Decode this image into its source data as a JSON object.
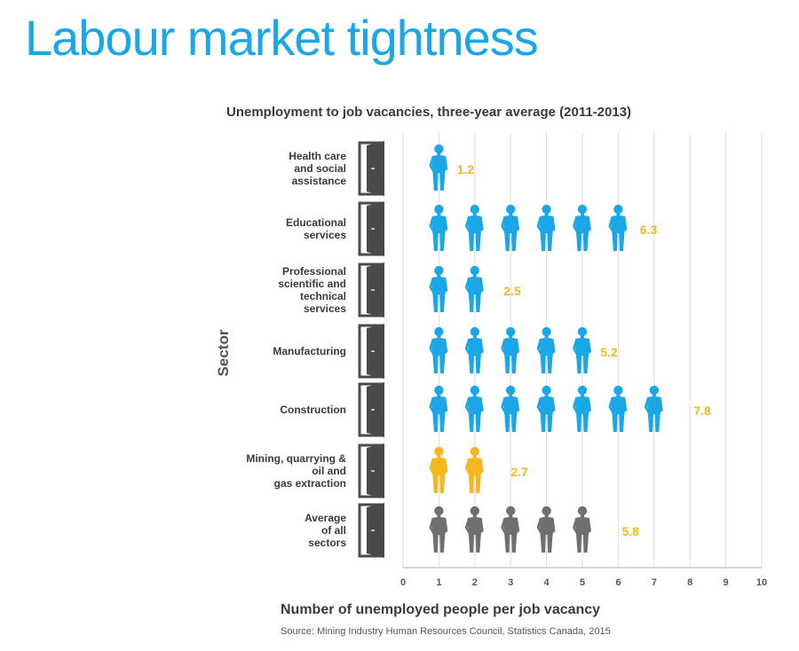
{
  "slide_title": "Labour market tightness",
  "source": "Source: Mining Industry Human Resources Council, Statistics Canada, 2015",
  "colors": {
    "blue": "#1aa7e8",
    "gold": "#f2b81d",
    "gray": "#6f6f6f",
    "door": "#4a4a4a",
    "grid": "#dcdcdc",
    "title": "#1aa7e8"
  },
  "chart_data": {
    "type": "bar",
    "title": "Unemployment to job vacancies, three-year average (2011-2013)",
    "xlabel": "Number of unemployed people per job vacancy",
    "ylabel": "Sector",
    "xlim": [
      0,
      10
    ],
    "xticks": [
      "0",
      "1",
      "2",
      "3",
      "4",
      "5",
      "6",
      "7",
      "8",
      "9",
      "10"
    ],
    "grid": "vertical",
    "legend": "none",
    "categories": [
      {
        "label": [
          "Health care",
          "and social",
          "assistance"
        ],
        "value": 1.2,
        "value_label": "1.2",
        "color": "blue"
      },
      {
        "label": [
          "Educational",
          "services"
        ],
        "value": 6.3,
        "value_label": "6.3",
        "color": "blue"
      },
      {
        "label": [
          "Professional",
          "scientific and",
          "technical",
          "services"
        ],
        "value": 2.5,
        "value_label": "2.5",
        "color": "blue"
      },
      {
        "label": [
          "Manufacturing"
        ],
        "value": 5.2,
        "value_label": "5.2",
        "color": "blue"
      },
      {
        "label": [
          "Construction"
        ],
        "value": 7.8,
        "value_label": "7.8",
        "color": "blue"
      },
      {
        "label": [
          "Mining, quarrying &",
          "oil and",
          "gas extraction"
        ],
        "value": 2.7,
        "value_label": "2.7",
        "color": "gold"
      },
      {
        "label": [
          "Average",
          "of all",
          "sectors"
        ],
        "value": 5.8,
        "value_label": "5.8",
        "color": "gray"
      }
    ]
  }
}
